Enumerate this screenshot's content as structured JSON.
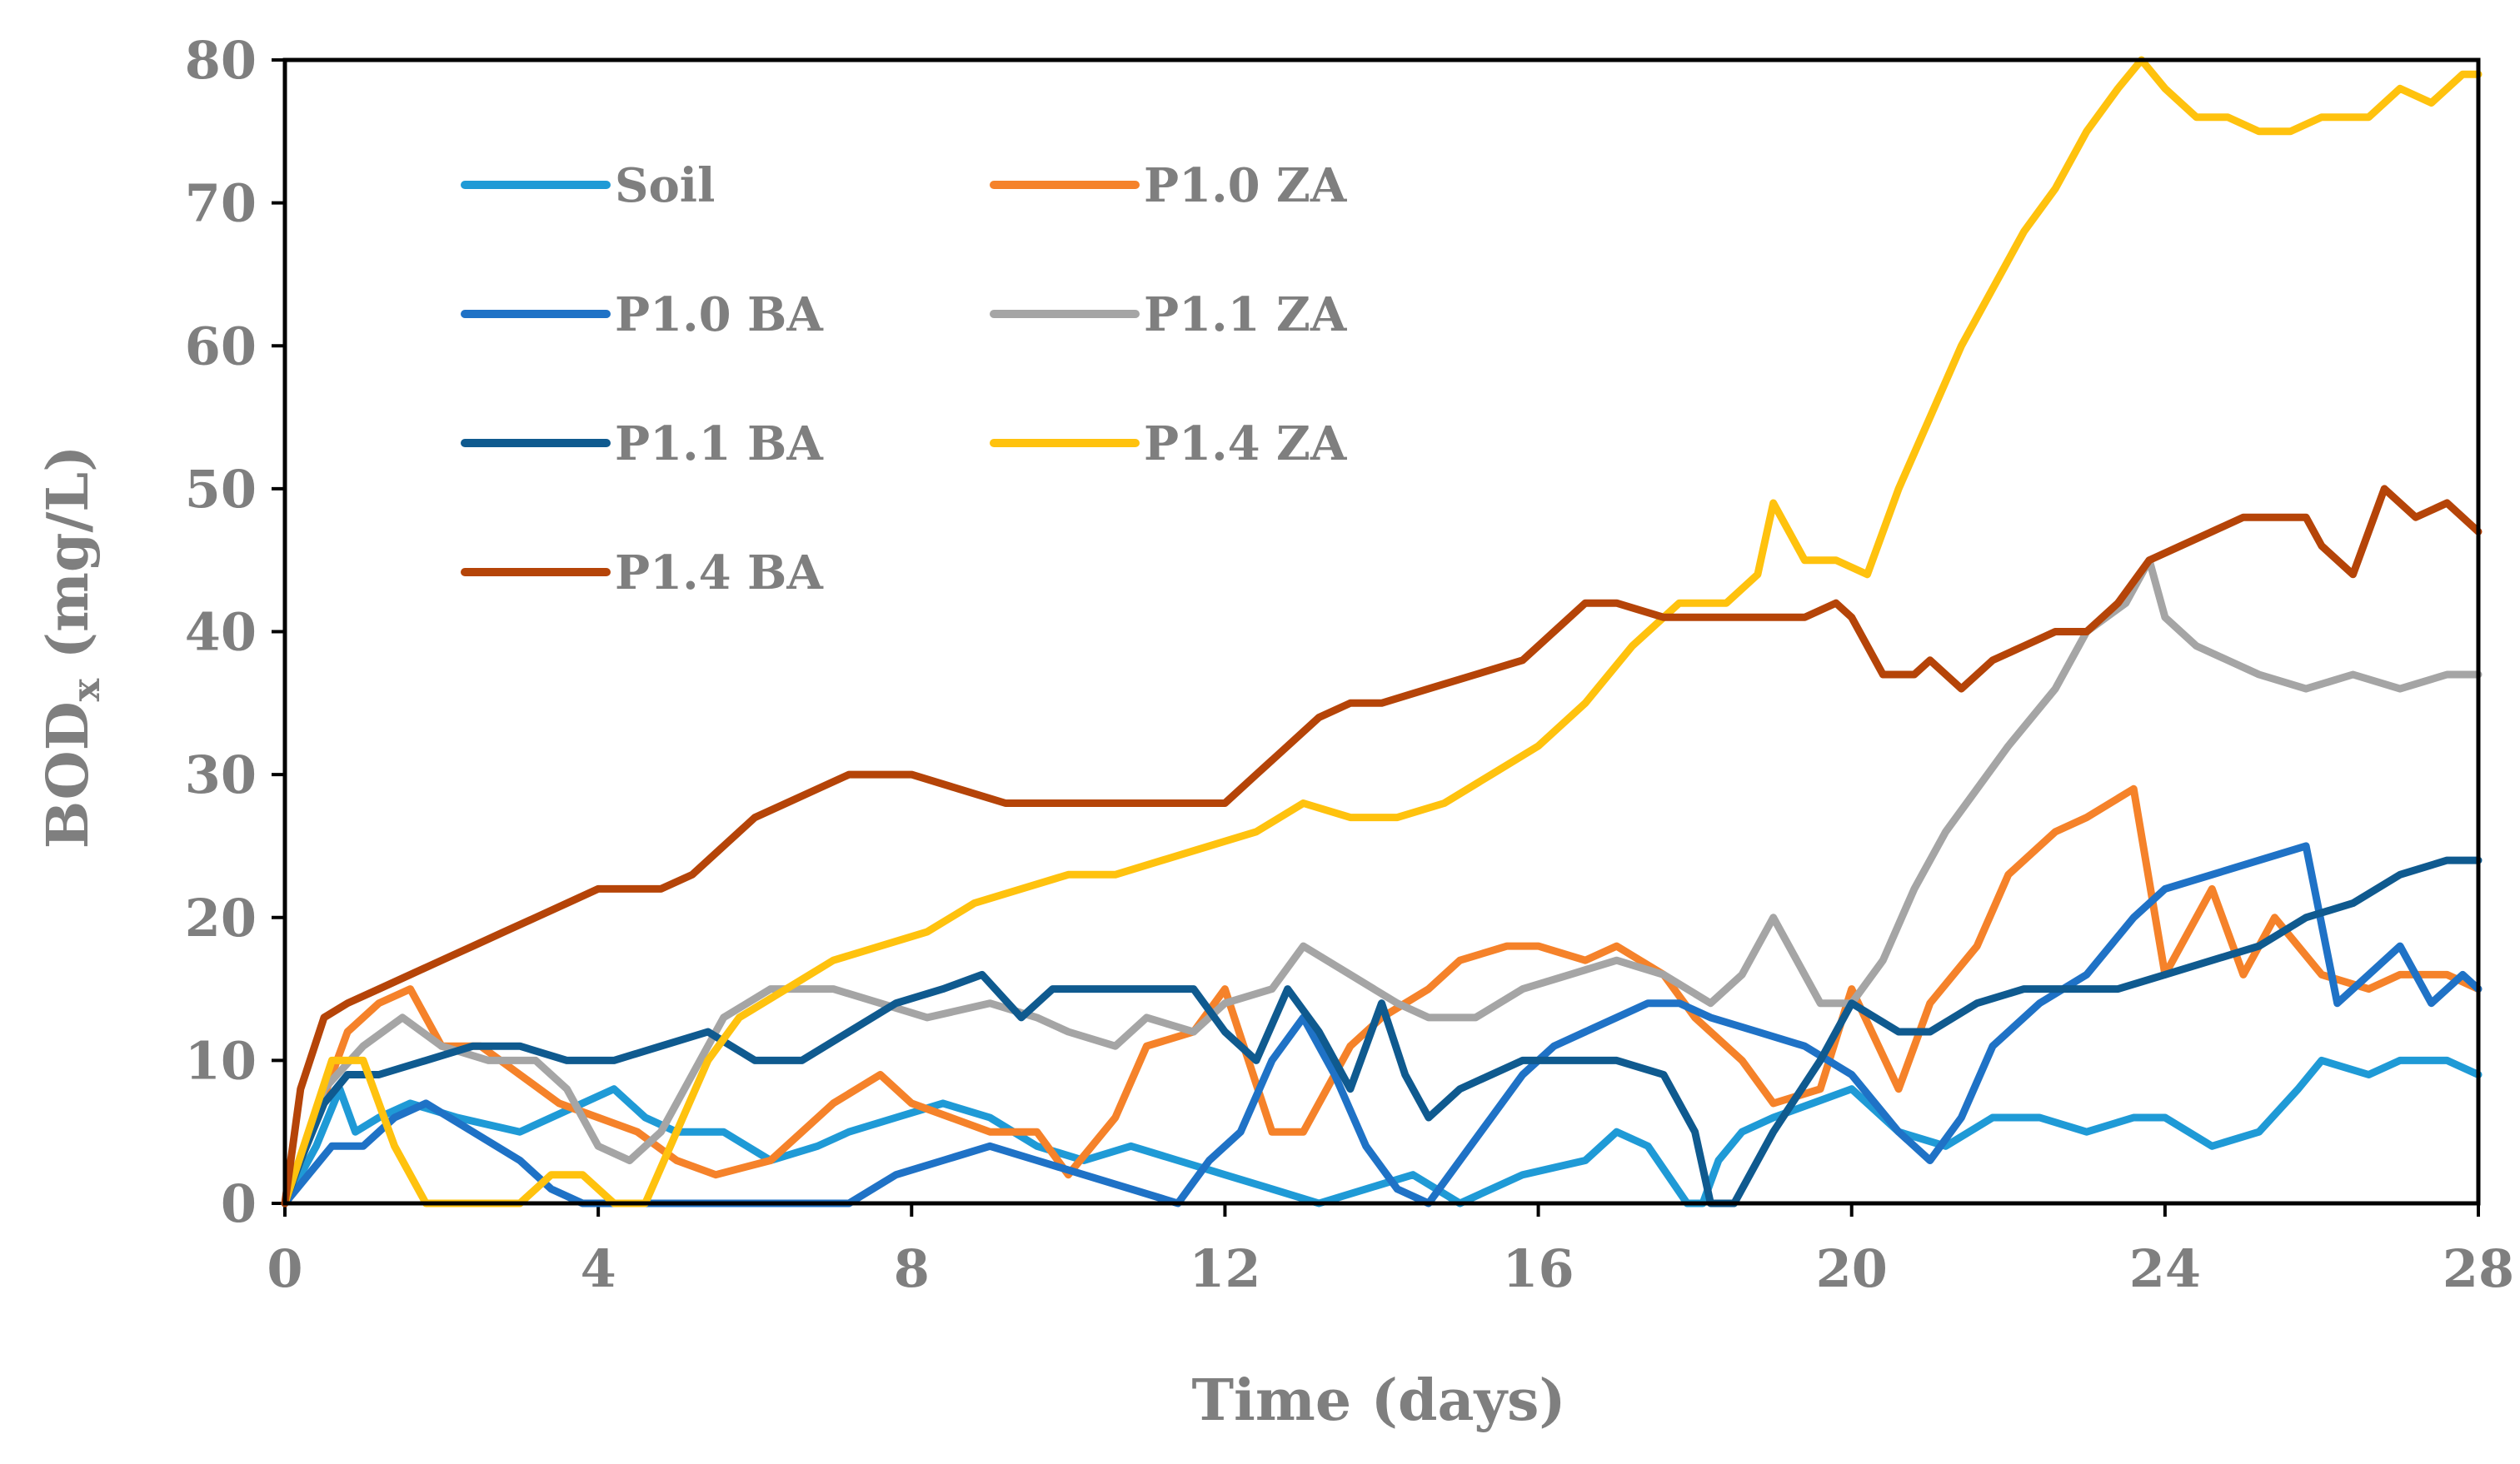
{
  "chart_data": {
    "type": "line",
    "title": "",
    "xlabel": "Time (days)",
    "ylabel": {
      "main": "BOD",
      "subscript": "x",
      "unit": " (mg/L)"
    },
    "xlim": [
      0,
      28
    ],
    "ylim": [
      0,
      80
    ],
    "xticks": [
      0,
      4,
      8,
      12,
      16,
      20,
      24,
      28
    ],
    "yticks": [
      0,
      10,
      20,
      30,
      40,
      50,
      60,
      70,
      80
    ],
    "grid": false,
    "legend_position": "top-left",
    "series": [
      {
        "name": "Soil",
        "color": "#1f9ad6",
        "x": [
          0,
          0.4,
          0.7,
          0.9,
          1.2,
          1.6,
          2.2,
          3.0,
          3.8,
          4.2,
          4.6,
          5.0,
          5.6,
          6.2,
          6.8,
          7.2,
          7.8,
          8.4,
          9.0,
          9.6,
          10.2,
          10.8,
          11.4,
          12.0,
          12.6,
          13.2,
          13.8,
          14.4,
          15.0,
          15.4,
          15.8,
          16.6,
          17.0,
          17.4,
          17.9,
          18.1,
          18.3,
          18.6,
          19.0,
          19.5,
          20.0,
          20.6,
          21.2,
          21.8,
          22.4,
          23.0,
          23.6,
          24.0,
          24.6,
          25.2,
          25.7,
          26.0,
          26.6,
          27.0,
          27.6,
          28.0
        ],
        "y": [
          0,
          4,
          8,
          5,
          6,
          7,
          6,
          5,
          7,
          8,
          6,
          5,
          5,
          3,
          4,
          5,
          6,
          7,
          6,
          4,
          3,
          4,
          3,
          2,
          1,
          0,
          1,
          2,
          0,
          1,
          2,
          3,
          5,
          4,
          0,
          0,
          3,
          5,
          6,
          7,
          8,
          5,
          4,
          6,
          6,
          5,
          6,
          6,
          4,
          5,
          8,
          10,
          9,
          10,
          10,
          9
        ]
      },
      {
        "name": "P1.0 ZA",
        "color": "#f5822a",
        "x": [
          0,
          0.4,
          0.8,
          1.2,
          1.6,
          2.0,
          2.5,
          3.0,
          3.5,
          4.0,
          4.5,
          5.0,
          5.5,
          6.2,
          7.0,
          7.6,
          8.0,
          8.5,
          9.0,
          9.6,
          10.0,
          10.6,
          11.0,
          11.6,
          12.0,
          12.6,
          13.0,
          13.6,
          14.0,
          14.6,
          15.0,
          15.6,
          16.0,
          16.6,
          17.0,
          17.6,
          18.0,
          18.6,
          19.0,
          19.6,
          20.0,
          20.6,
          21.0,
          21.6,
          22.0,
          22.6,
          23.0,
          23.6,
          24.0,
          24.6,
          25.0,
          25.4,
          26.0,
          26.6,
          27.0,
          27.6,
          28.0
        ],
        "y": [
          0,
          6,
          12,
          14,
          15,
          11,
          11,
          9,
          7,
          6,
          5,
          3,
          2,
          3,
          7,
          9,
          7,
          6,
          5,
          5,
          2,
          6,
          11,
          12,
          15,
          5,
          5,
          11,
          13,
          15,
          17,
          18,
          18,
          17,
          18,
          16,
          13,
          10,
          7,
          8,
          15,
          8,
          14,
          18,
          23,
          26,
          27,
          29,
          16,
          22,
          16,
          20,
          16,
          15,
          16,
          16,
          15
        ]
      },
      {
        "name": "P1.0 BA",
        "color": "#1f72c6",
        "x": [
          0,
          0.3,
          0.6,
          1.0,
          1.4,
          1.8,
          2.4,
          3.0,
          3.4,
          3.8,
          4.2,
          4.8,
          5.4,
          6.0,
          6.6,
          7.2,
          7.8,
          8.4,
          9.0,
          9.6,
          10.2,
          10.8,
          11.4,
          11.8,
          12.2,
          12.6,
          13.0,
          13.4,
          13.8,
          14.2,
          14.6,
          15.0,
          15.4,
          15.8,
          16.2,
          16.6,
          17.0,
          17.4,
          17.8,
          18.2,
          18.8,
          19.4,
          20.0,
          20.6,
          21.0,
          21.4,
          21.8,
          22.4,
          23.0,
          23.6,
          24.0,
          24.6,
          25.2,
          25.8,
          26.2,
          26.6,
          27.0,
          27.4,
          27.8,
          28.0
        ],
        "y": [
          0,
          2,
          4,
          4,
          6,
          7,
          5,
          3,
          1,
          0,
          0,
          0,
          0,
          0,
          0,
          0,
          2,
          3,
          4,
          3,
          2,
          1,
          0,
          3,
          5,
          10,
          13,
          9,
          4,
          1,
          0,
          3,
          6,
          9,
          11,
          12,
          13,
          14,
          14,
          13,
          12,
          11,
          9,
          5,
          3,
          6,
          11,
          14,
          16,
          20,
          22,
          23,
          24,
          25,
          14,
          16,
          18,
          14,
          16,
          15
        ]
      },
      {
        "name": "P1.1 ZA",
        "color": "#a5a5a5",
        "x": [
          0,
          0.5,
          1.0,
          1.5,
          2.0,
          2.6,
          3.2,
          3.6,
          4.0,
          4.4,
          4.8,
          5.2,
          5.6,
          6.2,
          7.0,
          7.6,
          8.2,
          9.0,
          9.6,
          10.0,
          10.6,
          11.0,
          11.6,
          12.0,
          12.6,
          13.0,
          13.6,
          14.2,
          14.6,
          15.2,
          15.8,
          16.4,
          17.0,
          17.6,
          18.2,
          18.6,
          19.0,
          19.6,
          20.0,
          20.4,
          20.8,
          21.2,
          21.6,
          22.0,
          22.6,
          23.0,
          23.5,
          23.8,
          24.0,
          24.4,
          24.8,
          25.2,
          25.8,
          26.4,
          27.0,
          27.6,
          28.0
        ],
        "y": [
          0,
          8,
          11,
          13,
          11,
          10,
          10,
          8,
          4,
          3,
          5,
          9,
          13,
          15,
          15,
          14,
          13,
          14,
          13,
          12,
          11,
          13,
          12,
          14,
          15,
          18,
          16,
          14,
          13,
          13,
          15,
          16,
          17,
          16,
          14,
          16,
          20,
          14,
          14,
          17,
          22,
          26,
          29,
          32,
          36,
          40,
          42,
          45,
          41,
          39,
          38,
          37,
          36,
          37,
          36,
          37,
          37
        ]
      },
      {
        "name": "P1.1 BA",
        "color": "#0f5a8f",
        "x": [
          0,
          0.2,
          0.5,
          0.8,
          1.2,
          1.8,
          2.4,
          3.0,
          3.6,
          4.2,
          4.8,
          5.4,
          6.0,
          6.6,
          7.2,
          7.8,
          8.4,
          8.9,
          9.4,
          9.8,
          10.4,
          11.0,
          11.6,
          12.0,
          12.4,
          12.8,
          13.2,
          13.6,
          14.0,
          14.3,
          14.6,
          15.0,
          15.4,
          15.8,
          16.4,
          17.0,
          17.6,
          18.0,
          18.2,
          18.5,
          19.0,
          19.6,
          20.0,
          20.6,
          21.0,
          21.6,
          22.2,
          22.8,
          23.4,
          24.0,
          24.6,
          25.2,
          25.8,
          26.4,
          27.0,
          27.6,
          28.0
        ],
        "y": [
          0,
          3,
          7,
          9,
          9,
          10,
          11,
          11,
          10,
          10,
          11,
          12,
          10,
          10,
          12,
          14,
          15,
          16,
          13,
          15,
          15,
          15,
          15,
          12,
          10,
          15,
          12,
          8,
          14,
          9,
          6,
          8,
          9,
          10,
          10,
          10,
          9,
          5,
          0,
          0,
          5,
          10,
          14,
          12,
          12,
          14,
          15,
          15,
          15,
          16,
          17,
          18,
          20,
          21,
          23,
          24,
          24
        ]
      },
      {
        "name": "P1.4 ZA",
        "color": "#ffc20e",
        "x": [
          0,
          0.3,
          0.6,
          1.0,
          1.4,
          1.8,
          2.2,
          2.6,
          3.0,
          3.4,
          3.8,
          4.2,
          4.6,
          5.0,
          5.4,
          5.8,
          6.4,
          7.0,
          7.6,
          8.2,
          8.8,
          9.4,
          10.0,
          10.6,
          11.2,
          11.8,
          12.4,
          13.0,
          13.6,
          14.2,
          14.8,
          15.4,
          16.0,
          16.6,
          17.2,
          17.8,
          18.4,
          18.8,
          19.0,
          19.4,
          19.8,
          20.2,
          20.6,
          21.0,
          21.4,
          21.8,
          22.2,
          22.6,
          23.0,
          23.4,
          23.7,
          24.0,
          24.4,
          24.8,
          25.2,
          25.6,
          26.0,
          26.6,
          27.0,
          27.4,
          27.8,
          28.0
        ],
        "y": [
          0,
          5,
          10,
          10,
          4,
          0,
          0,
          0,
          0,
          2,
          2,
          0,
          0,
          5,
          10,
          13,
          15,
          17,
          18,
          19,
          21,
          22,
          23,
          23,
          24,
          25,
          26,
          28,
          27,
          27,
          28,
          30,
          32,
          35,
          39,
          42,
          42,
          44,
          49,
          45,
          45,
          44,
          50,
          55,
          60,
          64,
          68,
          71,
          75,
          78,
          80,
          78,
          76,
          76,
          75,
          75,
          76,
          76,
          78,
          77,
          79,
          79
        ]
      },
      {
        "name": "P1.4 BA",
        "color": "#b54408",
        "x": [
          0,
          0.2,
          0.5,
          0.8,
          1.2,
          1.6,
          2.0,
          2.4,
          2.8,
          3.2,
          3.6,
          4.0,
          4.4,
          4.8,
          5.2,
          5.6,
          6.0,
          6.4,
          6.8,
          7.2,
          7.6,
          8.0,
          8.6,
          9.2,
          9.8,
          10.4,
          11.0,
          11.6,
          12.0,
          12.4,
          12.8,
          13.2,
          13.6,
          14.0,
          14.6,
          15.2,
          15.8,
          16.2,
          16.6,
          17.0,
          17.6,
          18.2,
          18.8,
          19.4,
          19.8,
          20.0,
          20.4,
          20.8,
          21.0,
          21.4,
          21.8,
          22.2,
          22.6,
          23.0,
          23.4,
          23.8,
          24.2,
          24.6,
          25.0,
          25.4,
          25.8,
          26.0,
          26.4,
          26.8,
          27.2,
          27.6,
          28.0
        ],
        "y": [
          0,
          8,
          13,
          14,
          15,
          16,
          17,
          18,
          19,
          20,
          21,
          22,
          22,
          22,
          23,
          25,
          27,
          28,
          29,
          30,
          30,
          30,
          29,
          28,
          28,
          28,
          28,
          28,
          28,
          30,
          32,
          34,
          35,
          35,
          36,
          37,
          38,
          40,
          42,
          42,
          41,
          41,
          41,
          41,
          42,
          41,
          37,
          37,
          38,
          36,
          38,
          39,
          40,
          40,
          42,
          45,
          46,
          47,
          48,
          48,
          48,
          46,
          44,
          50,
          48,
          49,
          47
        ]
      }
    ]
  }
}
